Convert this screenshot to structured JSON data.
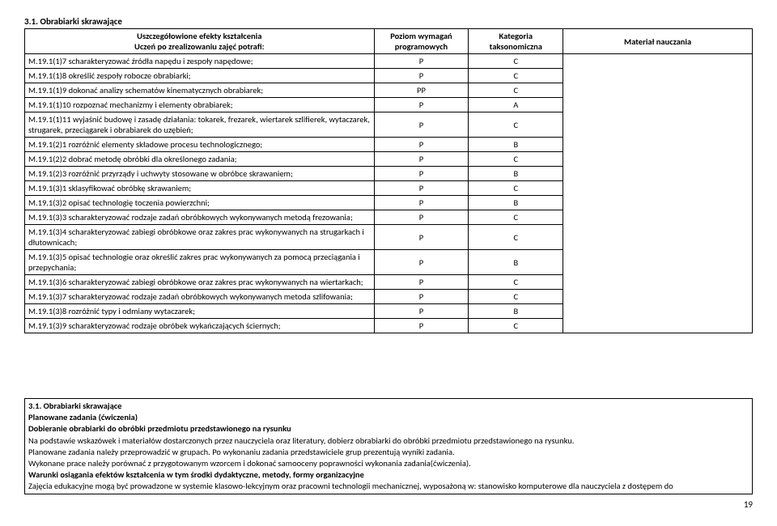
{
  "section_title_top": "3.1. Obrabiarki skrawające",
  "header": {
    "col1_line1": "Uszczegółowione efekty kształcenia",
    "col1_line2": "Uczeń po zrealizowaniu zajęć potrafi:",
    "col2": "Poziom wymagań programowych",
    "col3": "Kategoria taksonomiczna",
    "col4": "Materiał nauczania"
  },
  "rows": [
    {
      "desc": "M.19.1(1)7 scharakteryzować źródła napędu i zespoły napędowe;",
      "p": "P",
      "k": "C"
    },
    {
      "desc": "M.19.1(1)8 określić zespoły robocze obrabiarki;",
      "p": "P",
      "k": "C"
    },
    {
      "desc": "M.19.1(1)9 dokonać analizy schematów kinematycznych obrabiarek;",
      "p": "PP",
      "k": "C"
    },
    {
      "desc": "M.19.1(1)10 rozpoznać mechanizmy i elementy obrabiarek;",
      "p": "P",
      "k": "A"
    },
    {
      "desc": "M.19.1(1)11 wyjaśnić budowę i zasadę działania: tokarek, frezarek, wiertarek szlifierek, wytaczarek, strugarek, przeciągarek i obrabiarek do uzębień;",
      "p": "P",
      "k": "C"
    },
    {
      "desc": "M.19.1(2)1 rozróżnić elementy składowe procesu technologicznego;",
      "p": "P",
      "k": "B"
    },
    {
      "desc": "M.19.1(2)2 dobrać metodę obróbki dla określonego zadania;",
      "p": "P",
      "k": "C"
    },
    {
      "desc": "M.19.1(2)3 rozróżnić przyrządy i uchwyty stosowane w obróbce skrawaniem;",
      "p": "P",
      "k": "B"
    },
    {
      "desc": "M.19.1(3)1 sklasyfikować obróbkę skrawaniem;",
      "p": "P",
      "k": "C"
    },
    {
      "desc": "M.19.1(3)2 opisać technologię toczenia powierzchni;",
      "p": "P",
      "k": "B"
    },
    {
      "desc": "M.19.1(3)3 scharakteryzować rodzaje zadań obróbkowych wykonywanych metodą frezowania;",
      "p": "P",
      "k": "C"
    },
    {
      "desc": "M.19.1(3)4 scharakteryzować zabiegi obróbkowe oraz zakres prac wykonywanych na strugarkach i dłutownicach;",
      "p": "P",
      "k": "C"
    },
    {
      "desc": "M.19.1(3)5 opisać technologie oraz określić zakres prac wykonywanych za pomocą przeciągania i przepychania;",
      "p": "P",
      "k": "B"
    },
    {
      "desc": "M.19.1(3)6 scharakteryzować zabiegi obróbkowe oraz zakres prac wykonywanych na wiertarkach;",
      "p": "P",
      "k": "C"
    },
    {
      "desc": "M.19.1(3)7 scharakteryzować rodzaje zadań obróbkowych wykonywanych metoda szlifowania;",
      "p": "P",
      "k": "C"
    },
    {
      "desc": "M.19.1(3)8 rozróżnić typy i odmiany wytaczarek;",
      "p": "P",
      "k": "B"
    },
    {
      "desc": "M.19.1(3)9 scharakteryzować rodzaje obróbek wykańczających ściernych;",
      "p": "P",
      "k": "C"
    }
  ],
  "lower": {
    "title": "3.1. Obrabiarki skrawające",
    "l1": "Planowane zadania (ćwiczenia)",
    "l2": "Dobieranie obrabiarki do obróbki przedmiotu przedstawionego na rysunku",
    "l3": "Na podstawie wskazówek i materiałów dostarczonych przez nauczyciela oraz literatury, dobierz obrabiarki do obróbki przedmiotu przedstawionego na rysunku.",
    "l4": "Planowane zadania należy przeprowadzić w grupach. Po wykonaniu zadania przedstawiciele grup prezentują wyniki zadania.",
    "l5": "Wykonane prace należy porównać z przygotowanym wzorcem i dokonać samooceny poprawności wykonania zadania(ćwiczenia).",
    "l6": "Warunki osiągania efektów kształcenia w tym środki dydaktyczne, metody, formy organizacyjne",
    "l7": "Zajęcia edukacyjne mogą być prowadzone w systemie klasowo-lekcyjnym oraz pracowni technologii mechanicznej, wyposażoną w: stanowisko komputerowe dla nauczyciela z dostępem do"
  },
  "page_number": "19"
}
